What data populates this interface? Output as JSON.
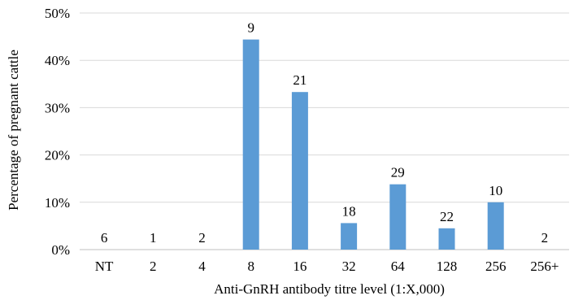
{
  "chart_data": {
    "type": "bar",
    "xlabel": "Anti-GnRH antibody titre level (1:X,000)",
    "ylabel": "Percentage of pregnant cattle",
    "categories": [
      "NT",
      "2",
      "4",
      "8",
      "16",
      "32",
      "64",
      "128",
      "256",
      "256+"
    ],
    "values": [
      0,
      0,
      0,
      44.4,
      33.3,
      5.6,
      13.8,
      4.5,
      10.0,
      0
    ],
    "data_labels": [
      "6",
      "1",
      "2",
      "9",
      "21",
      "18",
      "29",
      "22",
      "10",
      "2"
    ],
    "ylim": [
      0,
      50
    ],
    "yticks": [
      0,
      10,
      20,
      30,
      40,
      50
    ],
    "ytick_labels": [
      "0%",
      "10%",
      "20%",
      "30%",
      "40%",
      "50%"
    ],
    "grid": true,
    "legend": "none",
    "colors": {
      "bar": "#5b9bd5",
      "grid": "#d9d9d9",
      "axis": "#bfbfbf",
      "text": "#000000"
    }
  }
}
